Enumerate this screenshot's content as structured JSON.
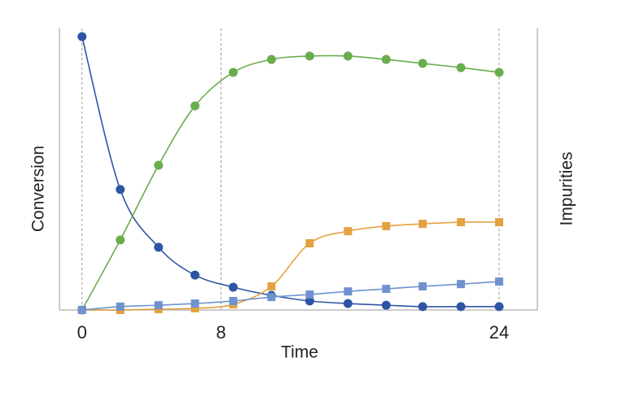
{
  "chart_data": {
    "type": "line",
    "x_label": "Time",
    "y_label": "Conversion",
    "y2_label": "Impurities",
    "x": [
      0,
      2.2,
      4.4,
      6.5,
      8.7,
      10.9,
      13.1,
      15.3,
      17.5,
      19.6,
      21.8,
      24
    ],
    "xlim": [
      -1.3,
      26.2
    ],
    "xticks": [
      0,
      8,
      24
    ],
    "grid": true,
    "ylim": [
      0,
      100
    ],
    "y2lim": [
      0,
      100
    ],
    "series": [
      {
        "color": "#2e55a5",
        "marker": "circle",
        "values": [
          97.1,
          42.8,
          22.3,
          12.4,
          8.1,
          5.2,
          3.2,
          2.3,
          1.7,
          1.2,
          1.2,
          1.2
        ]
      },
      {
        "color": "#6aad4e",
        "marker": "circle",
        "values": [
          0,
          24.9,
          51.4,
          72.5,
          84.4,
          89.0,
          90.2,
          90.2,
          89.0,
          87.6,
          86.1,
          84.4
        ]
      },
      {
        "color": "#e3a23f",
        "marker": "square",
        "axis": "y2",
        "values": [
          0,
          0,
          0.3,
          0.6,
          2.0,
          8.4,
          23.7,
          28.0,
          29.8,
          30.6,
          31.2,
          31.2
        ]
      },
      {
        "color": "#6f92cf",
        "marker": "square",
        "axis": "y2",
        "values": [
          0,
          1.2,
          1.7,
          2.3,
          3.2,
          4.6,
          5.5,
          6.6,
          7.5,
          8.4,
          9.2,
          10.1
        ]
      }
    ]
  }
}
